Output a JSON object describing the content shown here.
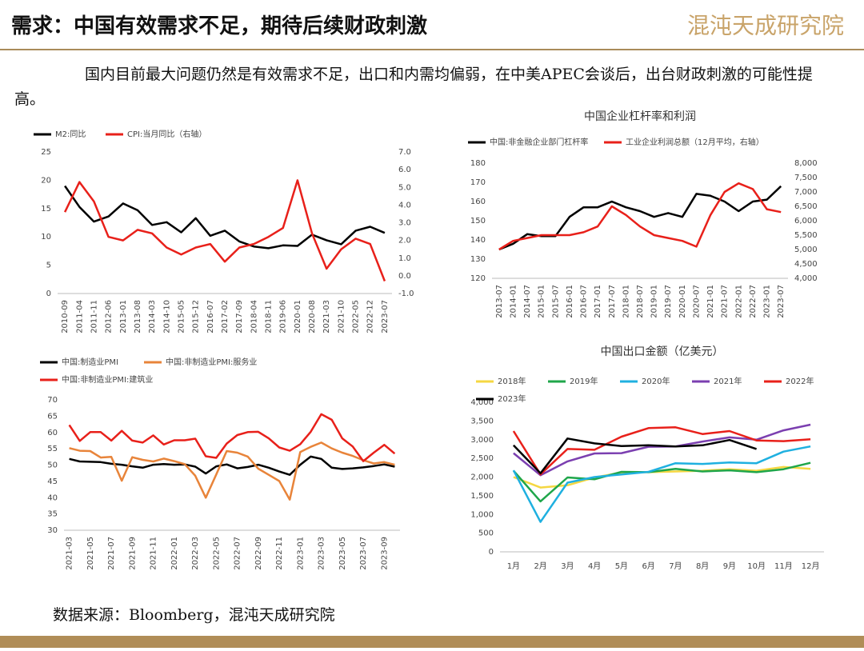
{
  "header": {
    "title": "需求：中国有效需求不足，期待后续财政刺激",
    "logo": "混沌天成研究院"
  },
  "intro": "国内目前最大问题仍然是有效需求不足，出口和内需均偏弱，在中美APEC会谈后，出台财政刺激的可能性提高。",
  "source": "数据来源：Bloomberg，混沌天成研究院",
  "chart_data": [
    {
      "type": "line",
      "legend": "top",
      "categories": [
        "2010-09",
        "2011-04",
        "2011-11",
        "2012-06",
        "2013-01",
        "2013-08",
        "2014-03",
        "2014-10",
        "2015-05",
        "2015-12",
        "2016-07",
        "2017-02",
        "2017-09",
        "2018-04",
        "2018-11",
        "2019-06",
        "2020-01",
        "2020-08",
        "2021-03",
        "2021-10",
        "2022-05",
        "2022-12",
        "2023-07"
      ],
      "series": [
        {
          "name": "M2:同比",
          "color": "#000000",
          "values": [
            19.0,
            15.3,
            12.7,
            13.6,
            15.9,
            14.7,
            12.1,
            12.6,
            10.8,
            13.3,
            10.2,
            11.1,
            9.2,
            8.3,
            8.0,
            8.5,
            8.4,
            10.4,
            9.4,
            8.7,
            11.1,
            11.8,
            10.7
          ]
        },
        {
          "name": "CPI:当月同比（右轴）",
          "color": "#e8201a",
          "axis": "y2",
          "values": [
            3.6,
            5.3,
            4.2,
            2.2,
            2.0,
            2.6,
            2.4,
            1.6,
            1.2,
            1.6,
            1.8,
            0.8,
            1.6,
            1.8,
            2.2,
            2.7,
            5.4,
            2.4,
            0.4,
            1.5,
            2.1,
            1.8,
            -0.3
          ]
        }
      ],
      "ylim": [
        0,
        25
      ],
      "yticks": [
        0,
        5,
        10,
        15,
        20,
        25
      ],
      "y2lim": [
        -1,
        7
      ],
      "y2ticks": [
        {
          "value": -1,
          "label": "-1.0"
        },
        {
          "value": 0,
          "label": "0.0"
        },
        {
          "value": 1,
          "label": "1.0"
        },
        {
          "value": 2,
          "label": "2.0"
        },
        {
          "value": 3,
          "label": "3.0"
        },
        {
          "value": 4,
          "label": "4.0"
        },
        {
          "value": 5,
          "label": "5.0"
        },
        {
          "value": 6,
          "label": "6.0"
        },
        {
          "value": 7,
          "label": "7.0"
        }
      ]
    },
    {
      "type": "line",
      "title": "中国企业杠杆率和利润",
      "legend": "top",
      "categories": [
        "2013-07",
        "2014-01",
        "2014-07",
        "2015-01",
        "2015-07",
        "2016-01",
        "2016-07",
        "2017-01",
        "2017-07",
        "2018-01",
        "2018-07",
        "2019-01",
        "2019-07",
        "2020-01",
        "2020-07",
        "2021-01",
        "2021-07",
        "2022-01",
        "2022-07",
        "2023-01",
        "2023-07"
      ],
      "series": [
        {
          "name": "中国:非金融企业部门杠杆率",
          "color": "#000000",
          "values": [
            135,
            138,
            143,
            142,
            142,
            152,
            157,
            157,
            160,
            157,
            155,
            152,
            154,
            152,
            164,
            163,
            160,
            155,
            160,
            161,
            168
          ]
        },
        {
          "name": "工业企业利润总额（12月平均，右轴）",
          "color": "#e8201a",
          "axis": "y2",
          "values": [
            5000,
            5300,
            5400,
            5500,
            5500,
            5500,
            5600,
            5800,
            6500,
            6200,
            5800,
            5500,
            5400,
            5300,
            5100,
            6200,
            7000,
            7300,
            7100,
            6400,
            6300
          ]
        }
      ],
      "ylim": [
        120,
        180
      ],
      "yticks": [
        120,
        130,
        140,
        150,
        160,
        170,
        180
      ],
      "y2lim": [
        4000,
        8000
      ],
      "y2ticks": [
        {
          "value": 4000,
          "label": "4,000"
        },
        {
          "value": 4500,
          "label": "4,500"
        },
        {
          "value": 5000,
          "label": "5,000"
        },
        {
          "value": 5500,
          "label": "5,500"
        },
        {
          "value": 6000,
          "label": "6,000"
        },
        {
          "value": 6500,
          "label": "6,500"
        },
        {
          "value": 7000,
          "label": "7,000"
        },
        {
          "value": 7500,
          "label": "7,500"
        },
        {
          "value": 8000,
          "label": "8,000"
        }
      ]
    },
    {
      "type": "line",
      "legend": "top",
      "categories": [
        "2021-03",
        null,
        "2021-05",
        null,
        "2021-07",
        null,
        "2021-09",
        null,
        "2021-11",
        null,
        "2022-01",
        null,
        "2022-03",
        null,
        "2022-05",
        null,
        "2022-07",
        null,
        "2022-09",
        null,
        "2022-11",
        null,
        "2023-01",
        null,
        "2023-03",
        null,
        "2023-05",
        null,
        "2023-07",
        null,
        "2023-09",
        null
      ],
      "series": [
        {
          "name": "中国:制造业PMI",
          "color": "#000000",
          "values": [
            51.9,
            51.1,
            51.0,
            50.9,
            50.4,
            50.1,
            49.6,
            49.2,
            50.1,
            50.3,
            50.1,
            50.2,
            49.5,
            47.4,
            49.6,
            50.2,
            49.0,
            49.4,
            50.1,
            49.2,
            48.0,
            47.0,
            50.1,
            52.6,
            51.9,
            49.2,
            48.8,
            49.0,
            49.3,
            49.7,
            50.2,
            49.5
          ]
        },
        {
          "name": "中国:非制造业PMI:服务业",
          "color": "#e8843a",
          "values": [
            55.2,
            54.4,
            54.3,
            52.3,
            52.5,
            45.2,
            52.4,
            51.6,
            51.1,
            52.0,
            51.2,
            50.3,
            46.7,
            40.0,
            47.1,
            54.3,
            53.8,
            52.6,
            48.9,
            47.0,
            45.1,
            39.4,
            54.0,
            55.6,
            56.9,
            55.1,
            53.8,
            52.8,
            51.5,
            50.5,
            50.9,
            50.1
          ]
        },
        {
          "name": "中国:非制造业PMI:建筑业",
          "color": "#e8201a",
          "values": [
            62.3,
            57.4,
            60.1,
            60.1,
            57.5,
            60.5,
            57.5,
            56.9,
            59.1,
            56.3,
            57.6,
            57.6,
            58.1,
            52.7,
            52.2,
            56.6,
            59.2,
            60.1,
            60.2,
            58.2,
            55.4,
            54.4,
            56.4,
            60.2,
            65.6,
            63.9,
            58.2,
            55.7,
            51.2,
            53.8,
            56.2,
            53.5
          ]
        }
      ],
      "ylim": [
        30,
        70
      ],
      "yticks": [
        30,
        35,
        40,
        45,
        50,
        55,
        60,
        65,
        70
      ]
    },
    {
      "type": "line",
      "title": "中国出口金额（亿美元）",
      "legend": "top",
      "categories": [
        "1月",
        "2月",
        "3月",
        "4月",
        "5月",
        "6月",
        "7月",
        "8月",
        "9月",
        "10月",
        "11月",
        "12月"
      ],
      "series": [
        {
          "name": "2018年",
          "color": "#f5d742",
          "values": [
            2000,
            1720,
            1780,
            1990,
            2120,
            2130,
            2150,
            2170,
            2210,
            2170,
            2270,
            2220
          ]
        },
        {
          "name": "2019年",
          "color": "#1fa64a",
          "values": [
            2170,
            1350,
            1990,
            1940,
            2140,
            2130,
            2220,
            2150,
            2180,
            2130,
            2210,
            2380
          ]
        },
        {
          "name": "2020年",
          "color": "#1fb0e0",
          "values": [
            2180,
            800,
            1850,
            2000,
            2070,
            2140,
            2370,
            2350,
            2390,
            2370,
            2680,
            2820
          ]
        },
        {
          "name": "2021年",
          "color": "#7b3fb0",
          "values": [
            2640,
            2050,
            2420,
            2630,
            2640,
            2810,
            2820,
            2950,
            3060,
            3000,
            3250,
            3400
          ]
        },
        {
          "name": "2022年",
          "color": "#e8201a",
          "values": [
            3230,
            2070,
            2750,
            2730,
            3080,
            3310,
            3330,
            3150,
            3230,
            2980,
            2960,
            3010
          ]
        },
        {
          "name": "2023年",
          "color": "#000000",
          "values": [
            2850,
            2100,
            3030,
            2900,
            2830,
            2850,
            2820,
            2850,
            2990,
            2750,
            null,
            null
          ]
        }
      ],
      "ylim": [
        0,
        4000
      ],
      "yticks": [
        0,
        {
          "value": 500,
          "label": "500"
        },
        {
          "value": 1000,
          "label": "1,000"
        },
        {
          "value": 1500,
          "label": "1,500"
        },
        {
          "value": 2000,
          "label": "2,000"
        },
        {
          "value": 2500,
          "label": "2,500"
        },
        {
          "value": 3000,
          "label": "3,000"
        },
        {
          "value": 3500,
          "label": "3,500"
        },
        {
          "value": 4000,
          "label": "4,000"
        }
      ]
    }
  ]
}
